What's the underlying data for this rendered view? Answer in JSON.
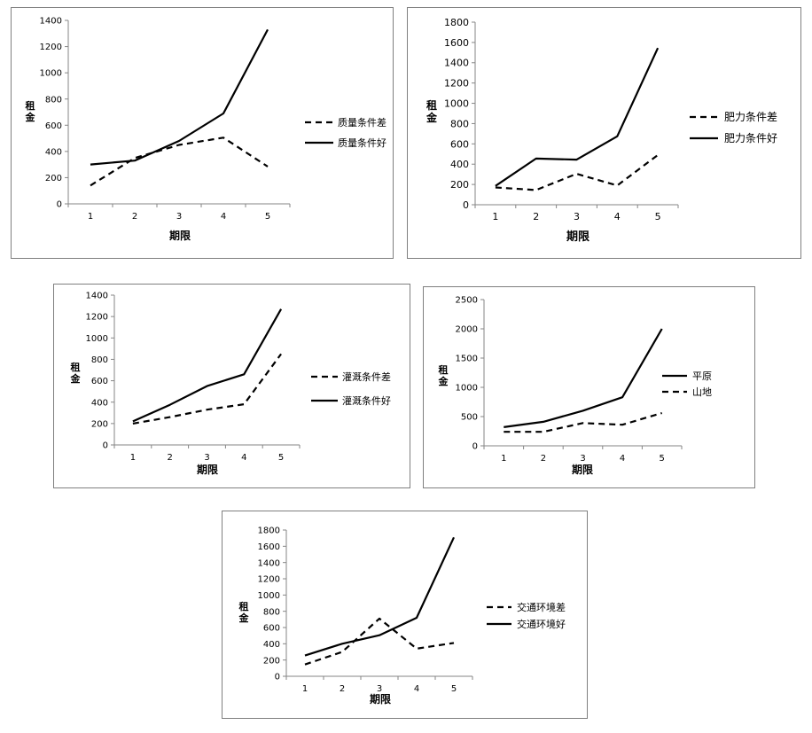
{
  "chart_data": [
    {
      "type": "line",
      "categories": [
        "1",
        "2",
        "3",
        "4",
        "5"
      ],
      "ylabel": "租金",
      "xlabel": "期限",
      "ylim": [
        0,
        1400
      ],
      "yticks": [
        "0",
        "200",
        "400",
        "600",
        "800",
        "1000",
        "1200",
        "1400"
      ],
      "legend_position": "right",
      "series": [
        {
          "name": "质量条件差",
          "style": "dashed",
          "values": [
            140,
            350,
            450,
            505,
            285
          ]
        },
        {
          "name": "质量条件好",
          "style": "solid",
          "values": [
            300,
            330,
            480,
            690,
            1330
          ]
        }
      ]
    },
    {
      "type": "line",
      "categories": [
        "1",
        "2",
        "3",
        "4",
        "5"
      ],
      "ylabel": "租金",
      "xlabel": "期限",
      "ylim": [
        0,
        1800
      ],
      "yticks": [
        "0",
        "200",
        "400",
        "600",
        "800",
        "1000",
        "1200",
        "1400",
        "1600",
        "1800"
      ],
      "legend_position": "right",
      "series": [
        {
          "name": "肥力条件差",
          "style": "dashed",
          "values": [
            170,
            145,
            305,
            190,
            490
          ]
        },
        {
          "name": "肥力条件好",
          "style": "solid",
          "values": [
            185,
            455,
            445,
            675,
            1545
          ]
        }
      ]
    },
    {
      "type": "line",
      "categories": [
        "1",
        "2",
        "3",
        "4",
        "5"
      ],
      "ylabel": "租金",
      "xlabel": "期限",
      "ylim": [
        0,
        1400
      ],
      "yticks": [
        "0",
        "200",
        "400",
        "600",
        "800",
        "1000",
        "1200",
        "1400"
      ],
      "legend_position": "right",
      "series": [
        {
          "name": "灌溉条件差",
          "style": "dashed",
          "values": [
            200,
            260,
            330,
            380,
            850
          ]
        },
        {
          "name": "灌溉条件好",
          "style": "solid",
          "values": [
            220,
            375,
            550,
            660,
            1270
          ]
        }
      ]
    },
    {
      "type": "line",
      "categories": [
        "1",
        "2",
        "3",
        "4",
        "5"
      ],
      "ylabel": "租金",
      "xlabel": "期限",
      "ylim": [
        0,
        2500
      ],
      "yticks": [
        "0",
        "500",
        "1000",
        "1500",
        "2000",
        "2500"
      ],
      "legend_position": "right",
      "series": [
        {
          "name": "平原",
          "style": "solid",
          "values": [
            320,
            410,
            600,
            830,
            2000
          ]
        },
        {
          "name": "山地",
          "style": "dashed",
          "values": [
            240,
            240,
            390,
            360,
            560
          ]
        }
      ]
    },
    {
      "type": "line",
      "categories": [
        "1",
        "2",
        "3",
        "4",
        "5"
      ],
      "ylabel": "租金",
      "xlabel": "期限",
      "ylim": [
        0,
        1800
      ],
      "yticks": [
        "0",
        "200",
        "400",
        "600",
        "800",
        "1000",
        "1200",
        "1400",
        "1600",
        "1800"
      ],
      "legend_position": "right",
      "series": [
        {
          "name": "交通环境差",
          "style": "dashed",
          "values": [
            145,
            300,
            710,
            340,
            410
          ]
        },
        {
          "name": "交通环境好",
          "style": "solid",
          "values": [
            255,
            400,
            505,
            720,
            1710
          ]
        }
      ]
    }
  ]
}
